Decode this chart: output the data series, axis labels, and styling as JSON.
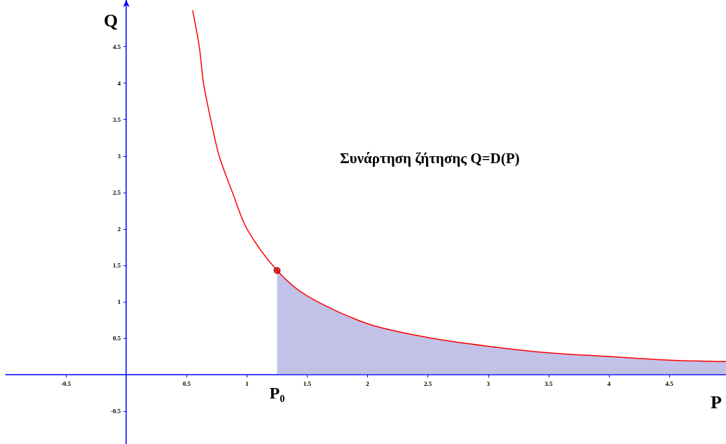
{
  "chart_data": {
    "type": "line",
    "title": "Συνάρτηση ζήτησης Q=D(P)",
    "xlabel": "P",
    "ylabel": "Q",
    "xlim": [
      -1,
      4.97
    ],
    "ylim": [
      -0.95,
      5.14
    ],
    "xticks": [
      -0.5,
      0.5,
      1,
      1.5,
      2,
      2.5,
      3,
      3.5,
      4,
      4.5
    ],
    "yticks": [
      -0.5,
      0.5,
      1,
      1.5,
      2,
      2.5,
      3,
      3.5,
      4,
      4.5
    ],
    "annotations": [
      {
        "text": "P₀",
        "x": 1.25,
        "y": 0
      }
    ],
    "series": [
      {
        "marker": "none",
        "color": "#ff0000",
        "x": [
          0.55,
          0.605,
          0.64,
          0.7,
          0.77,
          0.88,
          1.0,
          1.25,
          1.5,
          2,
          2.5,
          3,
          3.5,
          4,
          4.5,
          4.97
        ],
        "values": [
          5.0,
          4.5,
          4.0,
          3.5,
          3.0,
          2.5,
          2.0,
          1.43,
          1.08,
          0.7,
          0.51,
          0.39,
          0.3,
          0.25,
          0.2,
          0.18
        ]
      },
      {
        "type": "area",
        "color": "#7777cc",
        "x": [
          1.25,
          1.5,
          2,
          2.5,
          3,
          3.5,
          4,
          4.5,
          4.97
        ],
        "values": [
          1.43,
          1.08,
          0.7,
          0.51,
          0.39,
          0.3,
          0.25,
          0.2,
          0.18
        ]
      },
      {
        "type": "scatter",
        "marker": "circle",
        "color": "#dd0000",
        "x": [
          1.25
        ],
        "values": [
          1.43
        ]
      }
    ]
  }
}
